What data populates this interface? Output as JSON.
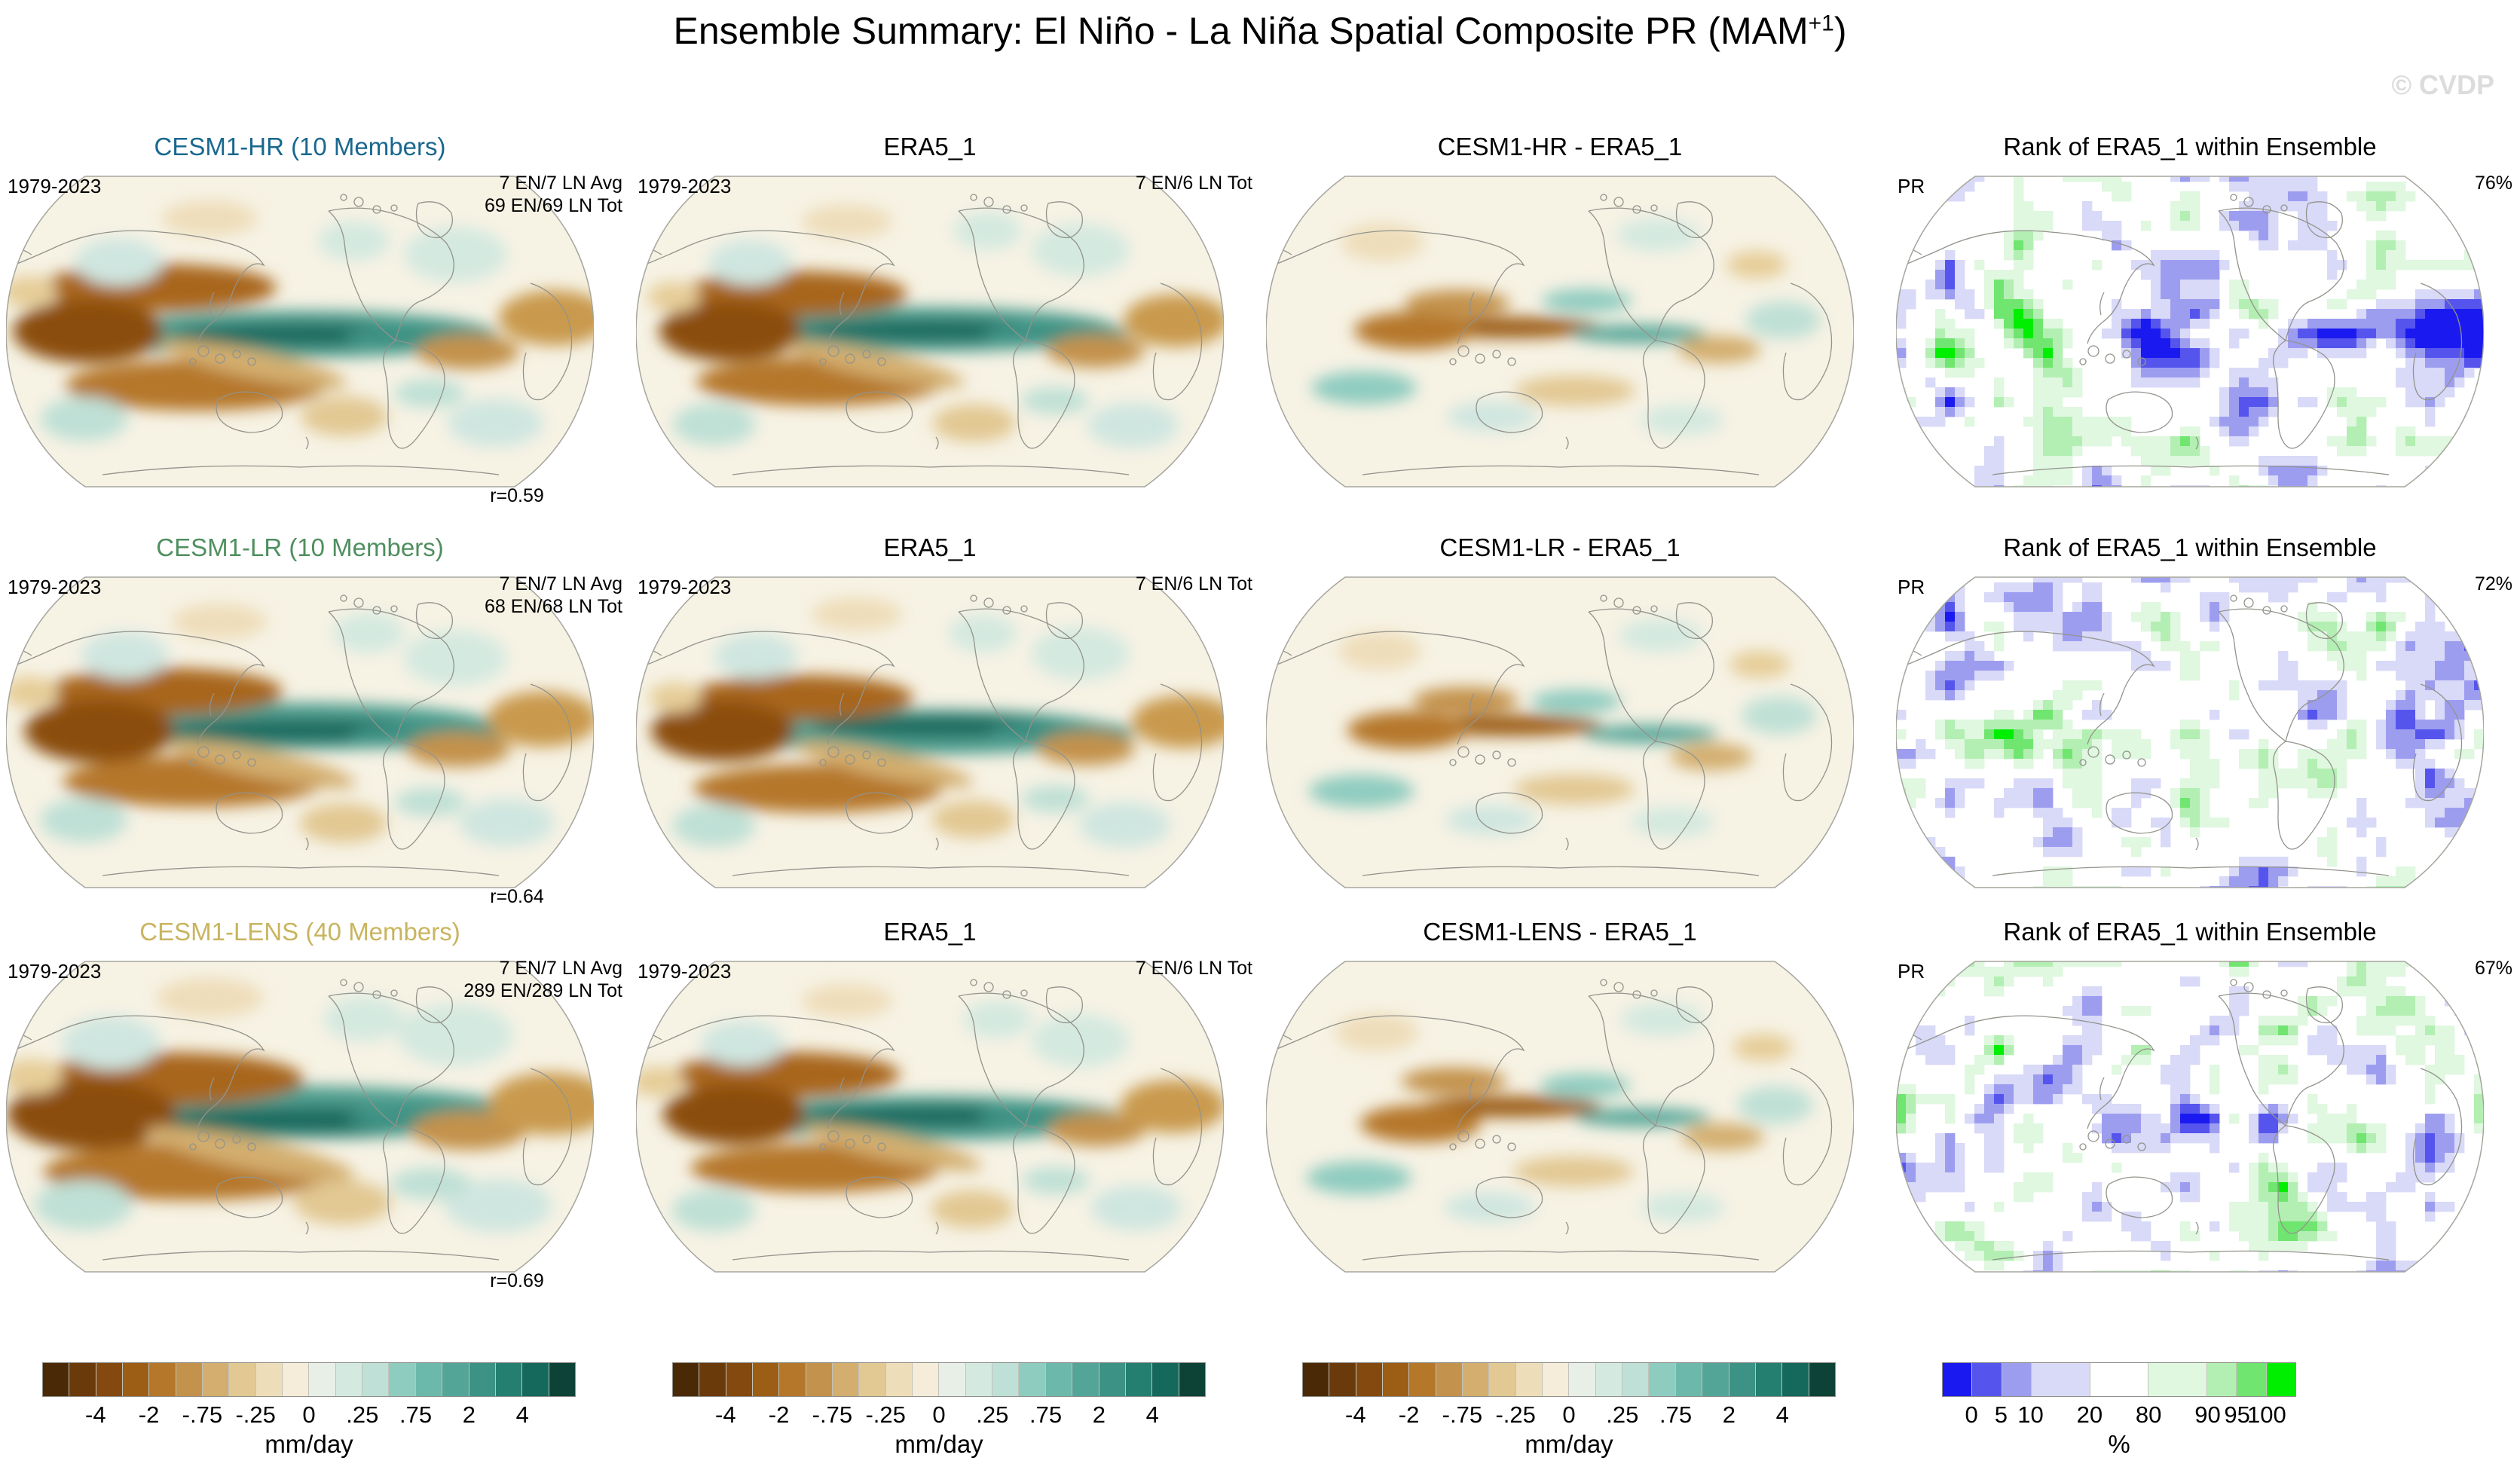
{
  "title": {
    "prefix": "Ensemble Summary: El Niño - La Niña Spatial Composite PR (MAM",
    "superscript": "+1",
    "suffix": ")"
  },
  "watermark": "© CVDP",
  "rows": [
    {
      "panels": [
        {
          "title": "CESM1-HR (10 Members)",
          "title_color": "#19688f",
          "top_left": "1979-2023",
          "top_right_lines": [
            "7 EN/7 LN Avg",
            "69 EN/69 LN Tot"
          ],
          "bottom_right": "r=0.59",
          "map": "composite"
        },
        {
          "title": "ERA5_1",
          "title_color": "#000000",
          "top_left": "1979-2023",
          "top_right_lines": [
            "7 EN/6 LN Tot"
          ],
          "map": "obs"
        },
        {
          "title": "CESM1-HR - ERA5_1",
          "title_color": "#000000",
          "top_right_lines": [],
          "map": "diff"
        },
        {
          "title": "Rank of ERA5_1 within Ensemble",
          "title_color": "#000000",
          "top_left": "PR",
          "top_right_lines": [
            "76%"
          ],
          "map": "rank"
        }
      ]
    },
    {
      "panels": [
        {
          "title": "CESM1-LR (10 Members)",
          "title_color": "#4f8f5f",
          "top_left": "1979-2023",
          "top_right_lines": [
            "7 EN/7 LN Avg",
            "68 EN/68 LN Tot"
          ],
          "bottom_right": "r=0.64",
          "map": "composite"
        },
        {
          "title": "ERA5_1",
          "title_color": "#000000",
          "top_left": "1979-2023",
          "top_right_lines": [
            "7 EN/6 LN Tot"
          ],
          "map": "obs"
        },
        {
          "title": "CESM1-LR - ERA5_1",
          "title_color": "#000000",
          "top_right_lines": [],
          "map": "diff"
        },
        {
          "title": "Rank of ERA5_1 within Ensemble",
          "title_color": "#000000",
          "top_left": "PR",
          "top_right_lines": [
            "72%"
          ],
          "map": "rank"
        }
      ]
    },
    {
      "panels": [
        {
          "title": "CESM1-LENS (40 Members)",
          "title_color": "#c9b45f",
          "top_left": "1979-2023",
          "top_right_lines": [
            "7 EN/7 LN Avg",
            "289 EN/289 LN Tot"
          ],
          "bottom_right": "r=0.69",
          "map": "composite"
        },
        {
          "title": "ERA5_1",
          "title_color": "#000000",
          "top_left": "1979-2023",
          "top_right_lines": [
            "7 EN/6 LN Tot"
          ],
          "map": "obs"
        },
        {
          "title": "CESM1-LENS - ERA5_1",
          "title_color": "#000000",
          "top_right_lines": [],
          "map": "diff"
        },
        {
          "title": "Rank of ERA5_1 within Ensemble",
          "title_color": "#000000",
          "top_left": "PR",
          "top_right_lines": [
            "67%"
          ],
          "map": "rank"
        }
      ]
    }
  ],
  "colorbars": {
    "mmday": {
      "unit": "mm/day",
      "ticks": [
        "-4",
        "-2",
        "-.75",
        "-.25",
        "0",
        ".25",
        ".75",
        "2",
        "4"
      ],
      "colors": [
        "#4a2a06",
        "#6b3a0a",
        "#84490e",
        "#9c5d15",
        "#b5772a",
        "#c3924c",
        "#d3ae6e",
        "#e2c893",
        "#eeddb9",
        "#f5ecd9",
        "#e7efe7",
        "#d4e9e0",
        "#bfe0d6",
        "#8fccc0",
        "#6cb8ab",
        "#52a597",
        "#3c9284",
        "#257f71",
        "#14695c",
        "#0d4237"
      ]
    },
    "rank": {
      "unit": "%",
      "ticks": [
        "0",
        "5",
        "10",
        "20",
        "80",
        "90",
        "95",
        "100"
      ],
      "colors": [
        "#1a1af0",
        "#5555ee",
        "#9d9df0",
        "#d9d9f8",
        "#ffffff",
        "#e0f7e0",
        "#b3efb3",
        "#70e570",
        "#00ee00"
      ],
      "widths": [
        1,
        1,
        1,
        2,
        2,
        2,
        1,
        1,
        1
      ]
    }
  },
  "chart_data": {
    "type": "heatmap",
    "title": "Ensemble Summary: El Niño - La Niña Spatial Composite PR (MAM+1)",
    "layout": "3 rows x 4 columns of global maps (Robinson-style projection), Pacific-centered",
    "panels": [
      {
        "row": 1,
        "col": 1,
        "title": "CESM1-HR (10 Members)",
        "period": "1979-2023",
        "events": "7 EN/7 LN Avg, 69 EN/69 LN Tot",
        "pattern_correlation": 0.59,
        "units": "mm/day"
      },
      {
        "row": 1,
        "col": 2,
        "title": "ERA5_1",
        "period": "1979-2023",
        "events": "7 EN/6 LN Tot",
        "units": "mm/day"
      },
      {
        "row": 1,
        "col": 3,
        "title": "CESM1-HR - ERA5_1",
        "units": "mm/day"
      },
      {
        "row": 1,
        "col": 4,
        "title": "Rank of ERA5_1 within Ensemble",
        "variable": "PR",
        "value": "76%",
        "units": "%"
      },
      {
        "row": 2,
        "col": 1,
        "title": "CESM1-LR (10 Members)",
        "period": "1979-2023",
        "events": "7 EN/7 LN Avg, 68 EN/68 LN Tot",
        "pattern_correlation": 0.64,
        "units": "mm/day"
      },
      {
        "row": 2,
        "col": 2,
        "title": "ERA5_1",
        "period": "1979-2023",
        "events": "7 EN/6 LN Tot",
        "units": "mm/day"
      },
      {
        "row": 2,
        "col": 3,
        "title": "CESM1-LR - ERA5_1",
        "units": "mm/day"
      },
      {
        "row": 2,
        "col": 4,
        "title": "Rank of ERA5_1 within Ensemble",
        "variable": "PR",
        "value": "72%",
        "units": "%"
      },
      {
        "row": 3,
        "col": 1,
        "title": "CESM1-LENS (40 Members)",
        "period": "1979-2023",
        "events": "7 EN/7 LN Avg, 289 EN/289 LN Tot",
        "pattern_correlation": 0.69,
        "units": "mm/day"
      },
      {
        "row": 3,
        "col": 2,
        "title": "ERA5_1",
        "period": "1979-2023",
        "events": "7 EN/6 LN Tot",
        "units": "mm/day"
      },
      {
        "row": 3,
        "col": 3,
        "title": "CESM1-LENS - ERA5_1",
        "units": "mm/day"
      },
      {
        "row": 3,
        "col": 4,
        "title": "Rank of ERA5_1 within Ensemble",
        "variable": "PR",
        "value": "67%",
        "units": "%"
      }
    ],
    "colorbar_mmday_ticks": [
      -4,
      -2,
      -0.75,
      -0.25,
      0,
      0.25,
      0.75,
      2,
      4
    ],
    "colorbar_mmday_unit": "mm/day",
    "colorbar_rank_ticks": [
      0,
      5,
      10,
      20,
      80,
      90,
      95,
      100
    ],
    "colorbar_rank_unit": "%"
  }
}
